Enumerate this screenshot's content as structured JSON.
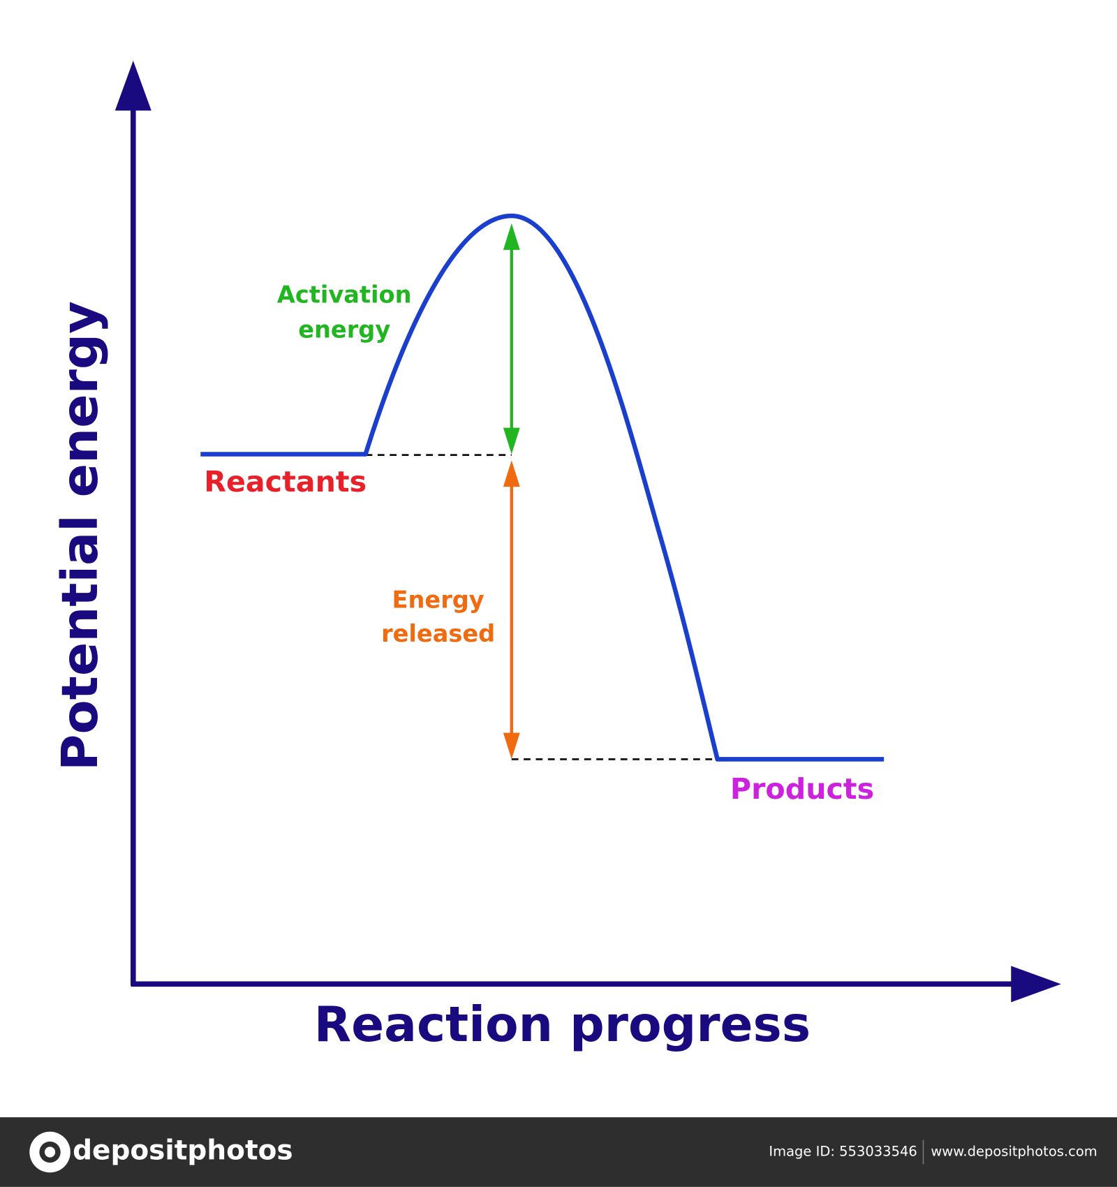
{
  "diagram": {
    "y_axis_label": "Potential energy",
    "x_axis_label": "Reaction progress",
    "labels": {
      "activation_energy": [
        "Activation",
        "energy"
      ],
      "reactants": "Reactants",
      "energy_released": [
        "Energy",
        "released"
      ],
      "products": "Products"
    }
  },
  "footer": {
    "logo": "depositphotos",
    "image_id": "Image ID: 553033546",
    "url": "www.depositphotos.com"
  }
}
